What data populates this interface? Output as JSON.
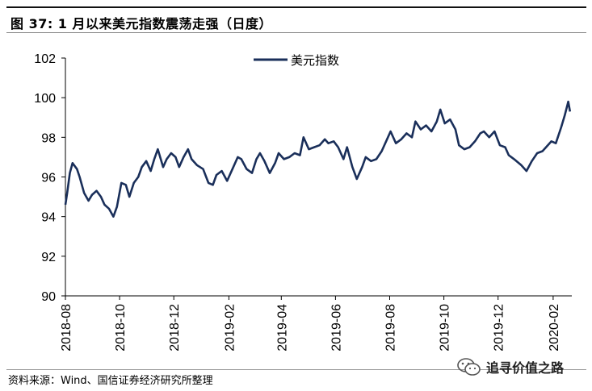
{
  "title": "图 37:  1 月以来美元指数震荡走强（日度）",
  "source": "资料来源：Wind、国信证券经济研究所整理",
  "watermark": {
    "text": "追寻价值之路",
    "icon": "wechat-icon"
  },
  "colors": {
    "series": "#1a2f5a",
    "axis": "#000000"
  },
  "chart_data": {
    "type": "line",
    "title": "",
    "xlabel": "",
    "ylabel": "",
    "ylim": [
      90,
      102
    ],
    "yticks": [
      "90",
      "92",
      "94",
      "96",
      "98",
      "100",
      "102"
    ],
    "xticks": [
      "2018-08",
      "2018-10",
      "2018-12",
      "2019-02",
      "2019-04",
      "2019-06",
      "2019-08",
      "2019-10",
      "2019-12",
      "2020-02"
    ],
    "grid": false,
    "legend": "top-center",
    "series": [
      {
        "name": "美元指数",
        "x": [
          "2018-08-01",
          "2018-08-03",
          "2018-08-06",
          "2018-08-09",
          "2018-08-14",
          "2018-08-17",
          "2018-08-22",
          "2018-08-27",
          "2018-08-31",
          "2018-09-05",
          "2018-09-10",
          "2018-09-14",
          "2018-09-19",
          "2018-09-24",
          "2018-09-28",
          "2018-10-03",
          "2018-10-08",
          "2018-10-12",
          "2018-10-17",
          "2018-10-22",
          "2018-10-26",
          "2018-10-31",
          "2018-11-05",
          "2018-11-09",
          "2018-11-13",
          "2018-11-19",
          "2018-11-23",
          "2018-11-28",
          "2018-12-03",
          "2018-12-07",
          "2018-12-12",
          "2018-12-17",
          "2018-12-21",
          "2018-12-27",
          "2019-01-03",
          "2019-01-09",
          "2019-01-14",
          "2019-01-18",
          "2019-01-24",
          "2019-01-30",
          "2019-02-05",
          "2019-02-11",
          "2019-02-15",
          "2019-02-21",
          "2019-02-27",
          "2019-03-04",
          "2019-03-08",
          "2019-03-13",
          "2019-03-19",
          "2019-03-25",
          "2019-03-29",
          "2019-04-04",
          "2019-04-10",
          "2019-04-16",
          "2019-04-22",
          "2019-04-26",
          "2019-05-02",
          "2019-05-08",
          "2019-05-14",
          "2019-05-20",
          "2019-05-24",
          "2019-05-30",
          "2019-06-04",
          "2019-06-10",
          "2019-06-14",
          "2019-06-20",
          "2019-06-25",
          "2019-07-01",
          "2019-07-05",
          "2019-07-11",
          "2019-07-17",
          "2019-07-23",
          "2019-07-29",
          "2019-08-02",
          "2019-08-08",
          "2019-08-14",
          "2019-08-20",
          "2019-08-26",
          "2019-08-30",
          "2019-09-05",
          "2019-09-11",
          "2019-09-17",
          "2019-09-23",
          "2019-09-27",
          "2019-10-02",
          "2019-10-08",
          "2019-10-14",
          "2019-10-18",
          "2019-10-24",
          "2019-10-30",
          "2019-11-05",
          "2019-11-11",
          "2019-11-15",
          "2019-11-21",
          "2019-11-27",
          "2019-12-03",
          "2019-12-09",
          "2019-12-13",
          "2019-12-19",
          "2019-12-27",
          "2020-01-02",
          "2020-01-08",
          "2020-01-14",
          "2020-01-20",
          "2020-01-24",
          "2020-01-30",
          "2020-02-04",
          "2020-02-10",
          "2020-02-14",
          "2020-02-18",
          "2020-02-20"
        ],
        "values": [
          94.6,
          95.2,
          96.2,
          96.7,
          96.4,
          96.0,
          95.2,
          94.8,
          95.1,
          95.3,
          95.0,
          94.6,
          94.4,
          94.0,
          94.5,
          95.7,
          95.6,
          95.0,
          95.7,
          96.0,
          96.5,
          96.8,
          96.3,
          96.9,
          97.4,
          96.5,
          96.9,
          97.2,
          97.0,
          96.5,
          97.0,
          97.4,
          96.9,
          96.6,
          96.4,
          95.7,
          95.6,
          96.1,
          96.3,
          95.8,
          96.4,
          97.0,
          96.9,
          96.4,
          96.2,
          96.9,
          97.2,
          96.8,
          96.2,
          96.7,
          97.2,
          96.9,
          97.0,
          97.2,
          97.1,
          98.0,
          97.4,
          97.5,
          97.6,
          97.9,
          97.7,
          97.8,
          97.5,
          96.9,
          97.5,
          96.5,
          95.9,
          96.5,
          97.0,
          96.8,
          96.9,
          97.3,
          97.9,
          98.3,
          97.7,
          97.9,
          98.2,
          98.0,
          98.8,
          98.4,
          98.6,
          98.3,
          98.8,
          99.4,
          98.7,
          98.9,
          98.4,
          97.6,
          97.4,
          97.5,
          97.8,
          98.2,
          98.3,
          98.0,
          98.3,
          97.6,
          97.5,
          97.1,
          96.9,
          96.6,
          96.3,
          96.8,
          97.2,
          97.3,
          97.5,
          97.8,
          97.7,
          98.5,
          99.1,
          99.8,
          99.3
        ]
      }
    ]
  }
}
